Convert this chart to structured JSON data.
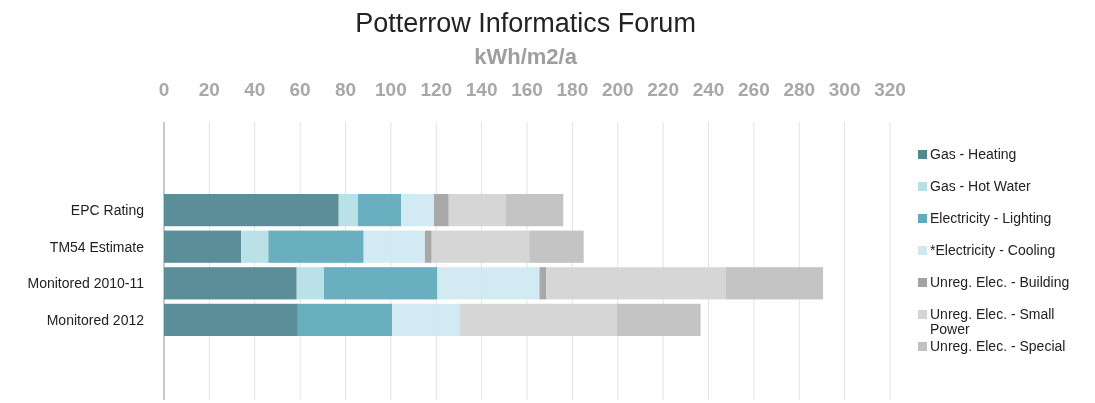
{
  "chart_data": {
    "type": "bar",
    "orientation": "horizontal",
    "stacked": true,
    "title": "Potterrow Informatics Forum",
    "xlabel": "kWh/m2/a",
    "categories": [
      "EPC Rating",
      "TM54 Estimate",
      "Monitored 2010-11",
      "Monitored 2012"
    ],
    "xlim": [
      0,
      320
    ],
    "xticks": [
      0,
      20,
      40,
      60,
      80,
      100,
      120,
      140,
      160,
      180,
      200,
      220,
      240,
      260,
      280,
      300,
      320
    ],
    "grid": "x",
    "legend": "right",
    "series": [
      {
        "name": "Gas - Heating",
        "color": "#528893",
        "values": [
          77,
          34,
          58.5,
          59
        ]
      },
      {
        "name": "Gas - Hot Water",
        "color": "#b6dfe7",
        "values": [
          8.5,
          12,
          12,
          null
        ]
      },
      {
        "name": "Electricity - Lighting",
        "color": "#62abbc",
        "values": [
          19,
          42,
          50,
          41.5
        ]
      },
      {
        "name": "*Electricity - Cooling",
        "color": "#d0e9f0",
        "values": [
          14.5,
          27,
          45,
          30
        ]
      },
      {
        "name": "Unreg. Elec. - Building",
        "color": "#a3a3a3",
        "values": [
          6.5,
          3,
          3,
          null
        ]
      },
      {
        "name": "Unreg. Elec. - Small Power",
        "color": "#d4d4d4",
        "values": [
          25,
          43,
          79,
          69
        ]
      },
      {
        "name": "Unreg. Elec. - Special",
        "color": "#c1c1c1",
        "values": [
          25.5,
          24,
          43,
          37
        ]
      }
    ]
  }
}
